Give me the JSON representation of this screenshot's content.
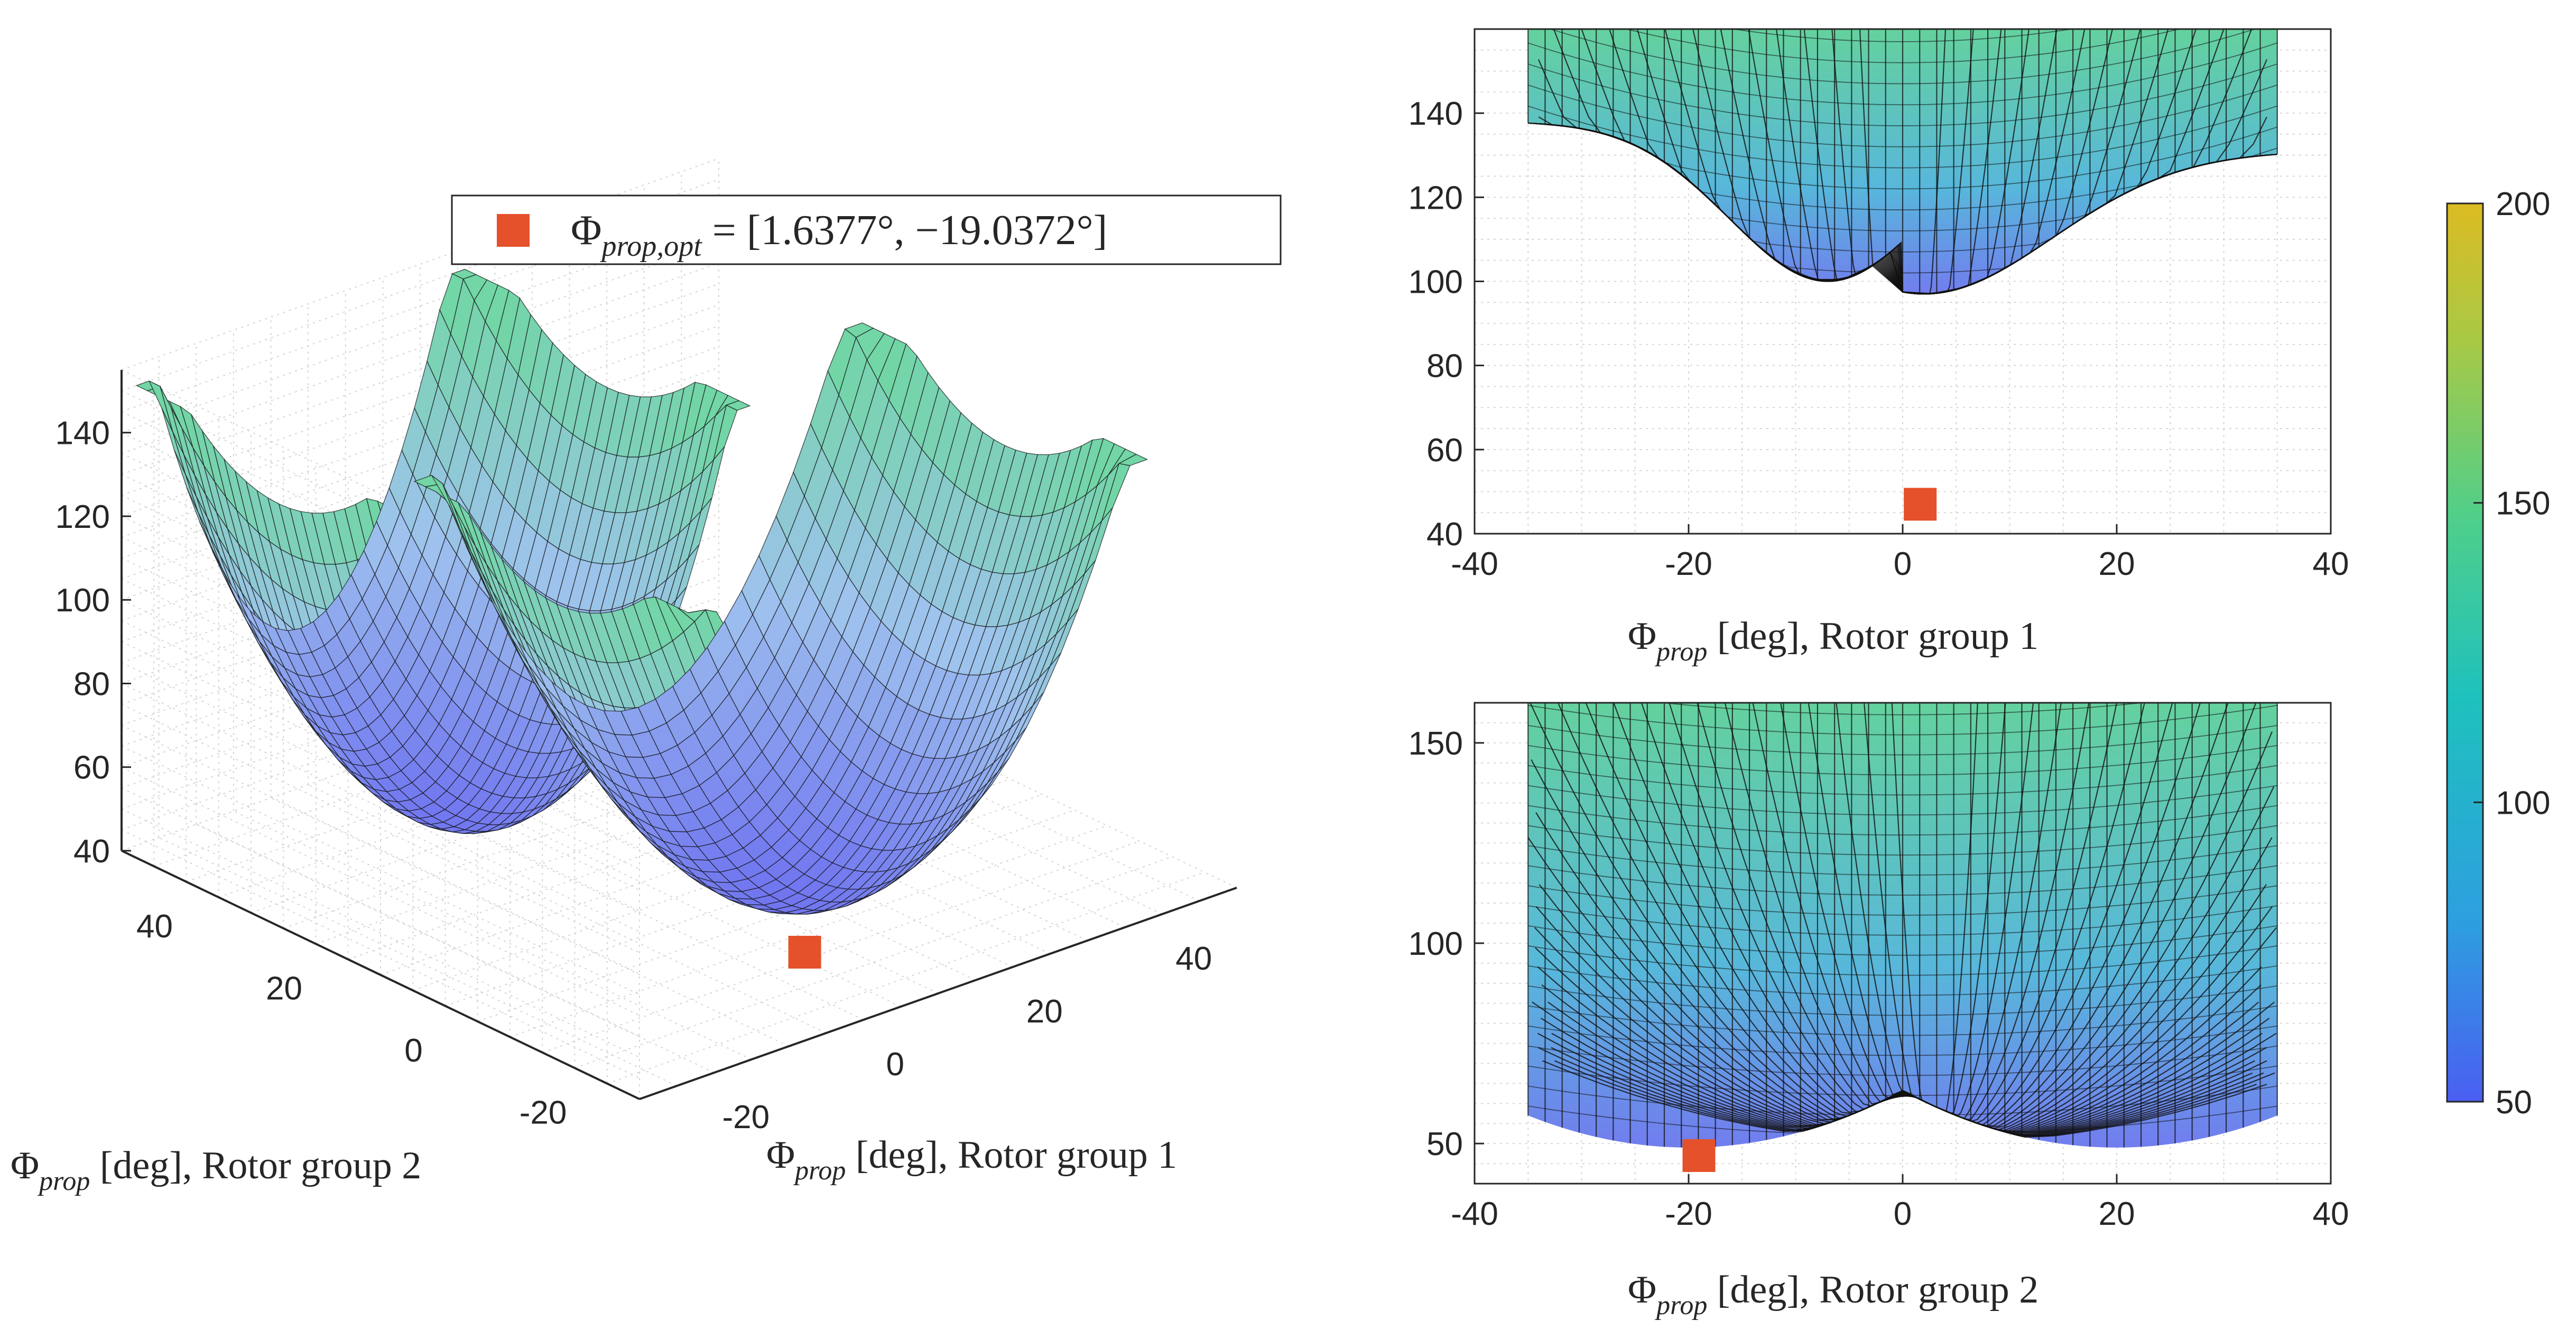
{
  "colors": {
    "surface_low": "#6f73f0",
    "surface_mid": "#9fc2ee",
    "surface_high": "#72d6a6",
    "marker": "#e4512a",
    "mesh": "#111111",
    "grid": "#d6d6d6",
    "axis": "#262626"
  },
  "legend": {
    "symbol": "Φ",
    "subscript": "prop,opt",
    "equals": " = ",
    "value": "[1.6377°, −19.0372°]"
  },
  "colorbar": {
    "ticks": [
      "50",
      "100",
      "150",
      "200"
    ],
    "range": [
      50,
      200
    ],
    "colors": [
      "#4a5ef2",
      "#2d9fe0",
      "#1ec1bd",
      "#4fcf8a",
      "#a9c944",
      "#dcbb22"
    ]
  },
  "chart_data": [
    {
      "type": "surface3d",
      "name": "3D view",
      "xlabel": {
        "symbol": "Φ",
        "sub": "prop",
        "rest": " [deg], Rotor group 1"
      },
      "ylabel": {
        "symbol": "Φ",
        "sub": "prop",
        "rest": " [deg], Rotor group 2"
      },
      "z_ticks": [
        "40",
        "60",
        "80",
        "100",
        "120",
        "140"
      ],
      "x_ticks": [
        "-20",
        "0",
        "20",
        "40"
      ],
      "y_ticks": [
        "-20",
        "0",
        "20",
        "40"
      ],
      "zlim": [
        40,
        150
      ],
      "optimum": [
        1.6377,
        -19.0372,
        47
      ]
    },
    {
      "type": "surface_projection",
      "name": "Projection vs Rotor group 1",
      "xlabel": {
        "symbol": "Φ",
        "sub": "prop",
        "rest": " [deg], Rotor group 1"
      },
      "x_ticks": [
        "-40",
        "-20",
        "0",
        "20",
        "40"
      ],
      "y_ticks": [
        "40",
        "60",
        "80",
        "100",
        "120",
        "140"
      ],
      "xlim": [
        -40,
        40
      ],
      "ylim": [
        40,
        160
      ],
      "optimum": [
        1.6377,
        47
      ]
    },
    {
      "type": "surface_projection",
      "name": "Projection vs Rotor group 2",
      "xlabel": {
        "symbol": "Φ",
        "sub": "prop",
        "rest": " [deg], Rotor group 2"
      },
      "x_ticks": [
        "-40",
        "-20",
        "0",
        "20",
        "40"
      ],
      "y_ticks": [
        "50",
        "100",
        "150"
      ],
      "xlim": [
        -40,
        40
      ],
      "ylim": [
        40,
        160
      ],
      "optimum": [
        -19.0372,
        47
      ]
    }
  ]
}
